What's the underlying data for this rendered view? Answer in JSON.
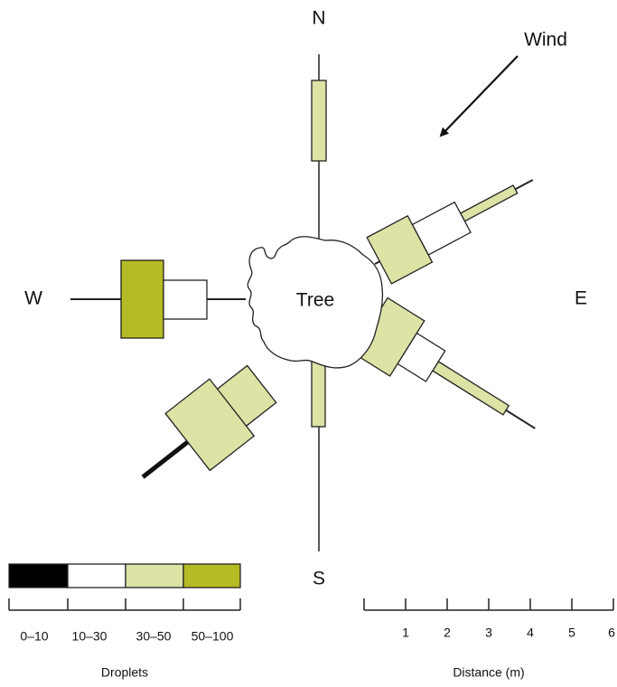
{
  "compass": {
    "north": "N",
    "south": "S",
    "west": "W",
    "east": "E"
  },
  "wind": "Wind",
  "tree": "Tree",
  "legend": {
    "classes": [
      "0–10",
      "10–30",
      "30–50",
      "50–100"
    ],
    "title": "Droplets"
  },
  "scale": {
    "ticks": [
      1,
      2,
      3,
      4,
      5,
      6
    ],
    "title": "Distance (m)"
  }
}
